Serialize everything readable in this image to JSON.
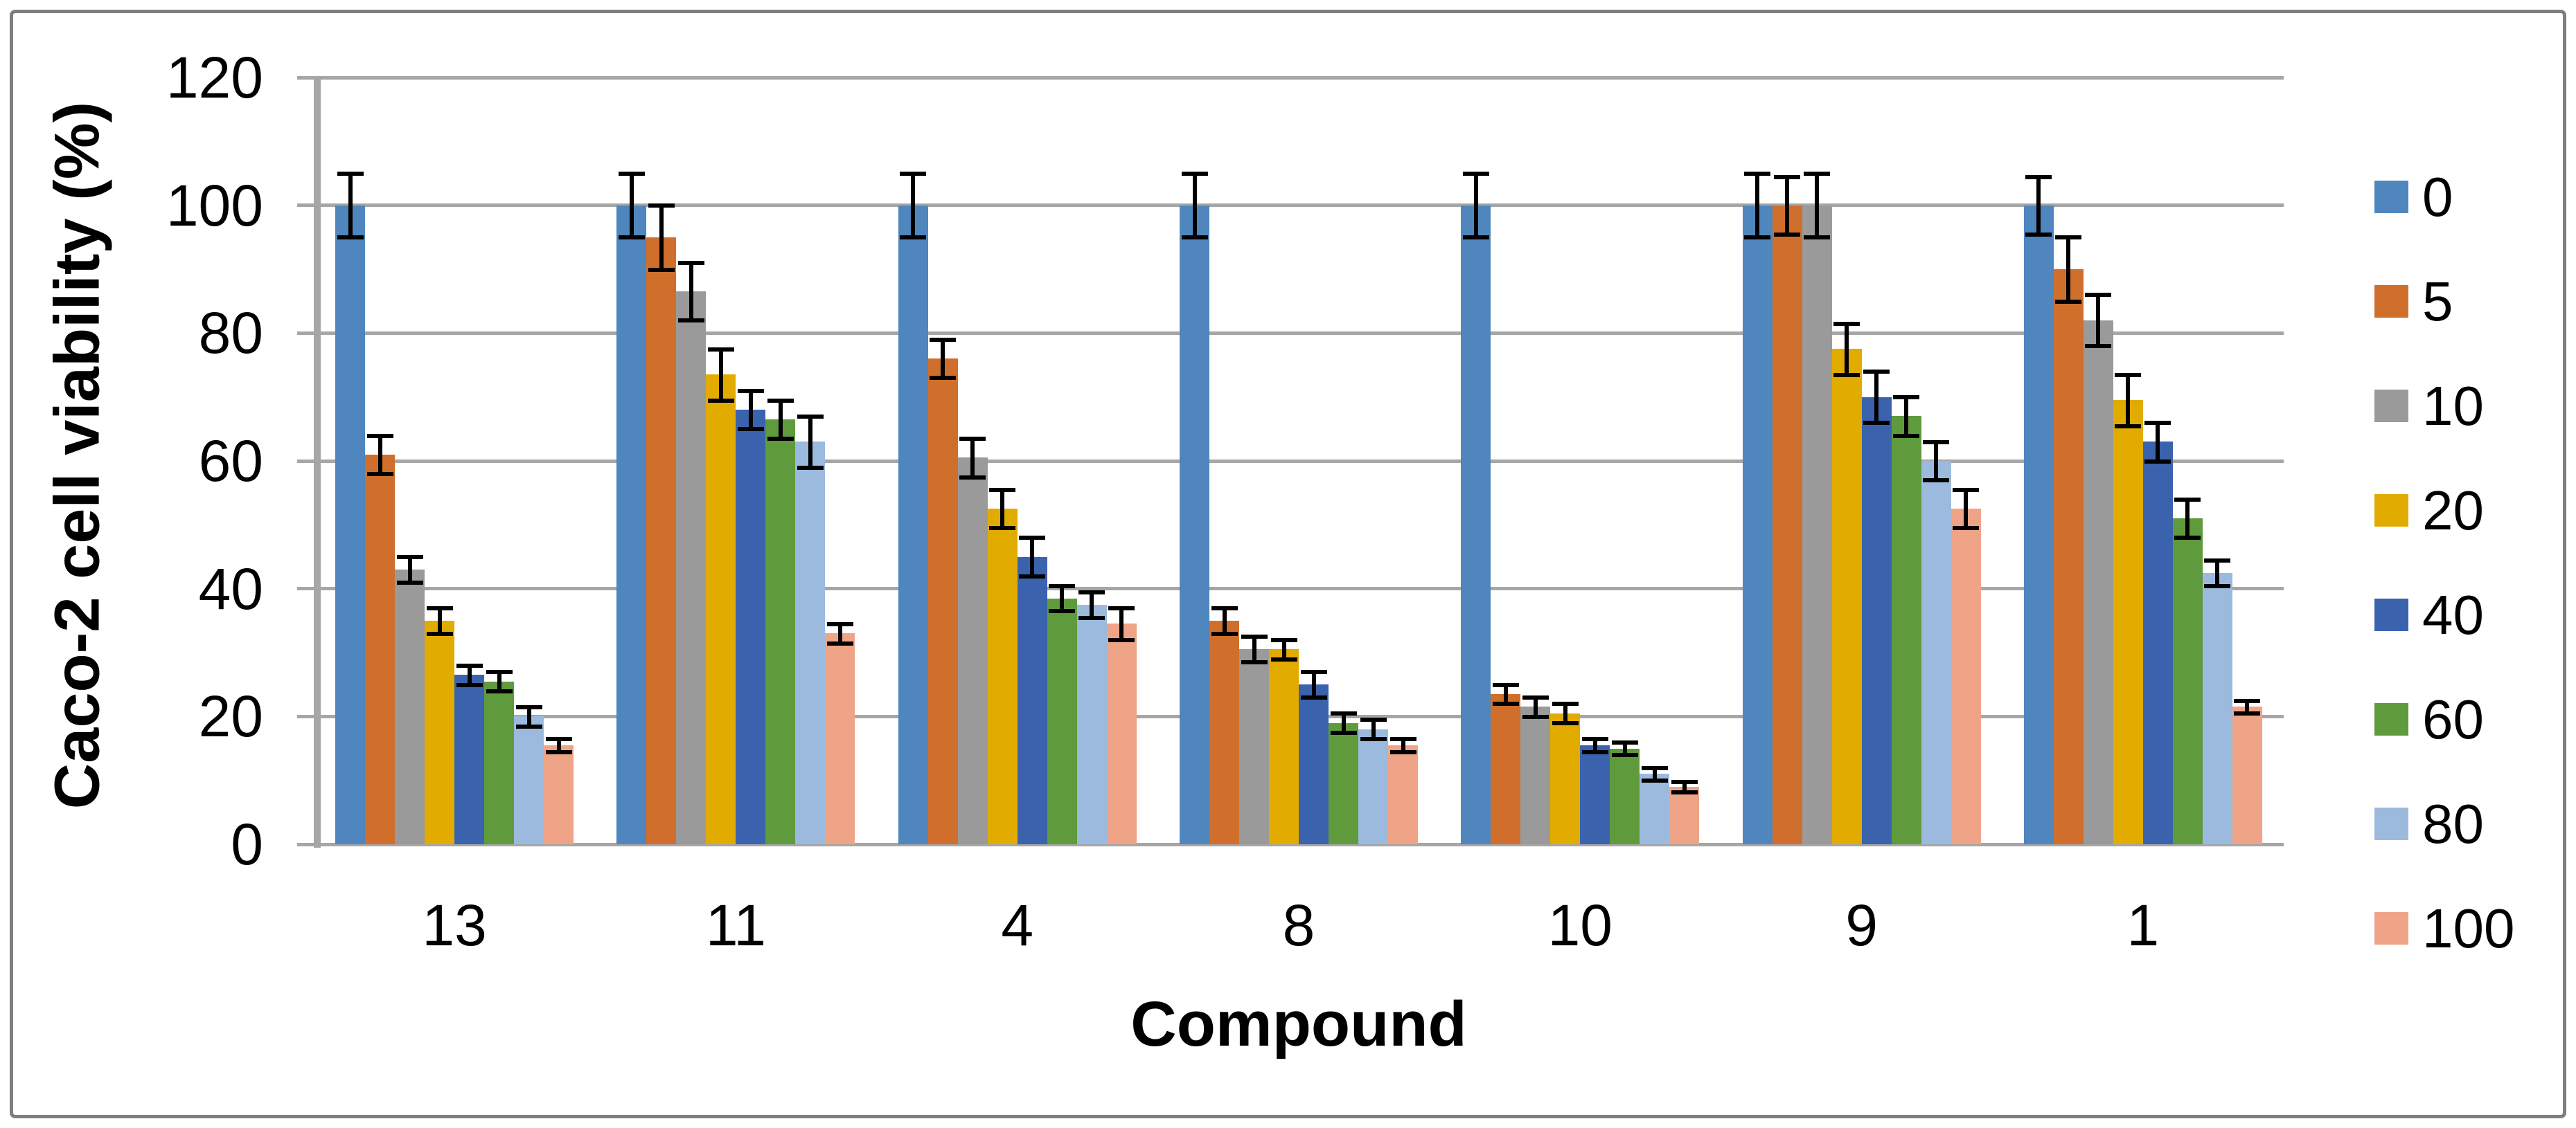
{
  "figure": {
    "background_color": "#ffffff",
    "border_color": "#7f7f7f",
    "gridline_color": "#a6a6a6",
    "text_color": "#000000",
    "error_bar_color": "#000000"
  },
  "chart_data": {
    "type": "bar",
    "title": "",
    "xlabel": "Compound",
    "ylabel": "Caco-2 cell viability (%)",
    "ylim": [
      0,
      120
    ],
    "y_ticks": [
      0,
      20,
      40,
      60,
      80,
      100,
      120
    ],
    "grid": "horizontal",
    "legend_position": "right",
    "error_bars": true,
    "categories": [
      "13",
      "11",
      "4",
      "8",
      "10",
      "9",
      "1"
    ],
    "series": [
      {
        "name": "0",
        "color": "#4e86bd",
        "values": [
          100,
          100,
          100,
          100,
          100,
          100,
          100
        ],
        "errors": [
          5,
          5,
          5,
          5,
          5,
          5,
          4.5
        ]
      },
      {
        "name": "5",
        "color": "#d06f2c",
        "values": [
          61,
          95,
          76,
          35,
          23.5,
          100,
          90
        ],
        "errors": [
          3,
          5,
          3,
          2,
          1.5,
          4.5,
          5
        ]
      },
      {
        "name": "10",
        "color": "#9a9a9a",
        "values": [
          43,
          86.5,
          60.5,
          30.5,
          21.5,
          100,
          82
        ],
        "errors": [
          2,
          4.5,
          3,
          2,
          1.5,
          5,
          4
        ]
      },
      {
        "name": "20",
        "color": "#e2ab00",
        "values": [
          35,
          73.5,
          52.5,
          30.5,
          20.5,
          77.5,
          69.5
        ],
        "errors": [
          2,
          4,
          3,
          1.5,
          1.5,
          4,
          4
        ]
      },
      {
        "name": "40",
        "color": "#3b63ad",
        "values": [
          26.5,
          68,
          45,
          25,
          15.5,
          70,
          63
        ],
        "errors": [
          1.5,
          3,
          3,
          2,
          1,
          4,
          3
        ]
      },
      {
        "name": "60",
        "color": "#5f9a3c",
        "values": [
          25.5,
          66.5,
          38.5,
          19,
          15,
          67,
          51
        ],
        "errors": [
          1.5,
          3,
          2,
          1.5,
          1,
          3,
          3
        ]
      },
      {
        "name": "80",
        "color": "#9cbade",
        "values": [
          20,
          63,
          37.5,
          18,
          11,
          60,
          42.5
        ],
        "errors": [
          1.5,
          4,
          2,
          1.5,
          1,
          3,
          2
        ]
      },
      {
        "name": "100",
        "color": "#f0a487",
        "values": [
          15.5,
          33,
          34.5,
          15.5,
          9,
          52.5,
          21.5
        ],
        "errors": [
          1,
          1.5,
          2.5,
          1,
          0.8,
          3,
          1
        ]
      }
    ]
  },
  "legend": {
    "items": [
      {
        "label": "0",
        "color": "#4e86bd"
      },
      {
        "label": "5",
        "color": "#d06f2c"
      },
      {
        "label": "10",
        "color": "#9a9a9a"
      },
      {
        "label": "20",
        "color": "#e2ab00"
      },
      {
        "label": "40",
        "color": "#3b63ad"
      },
      {
        "label": "60",
        "color": "#5f9a3c"
      },
      {
        "label": "80",
        "color": "#9cbade"
      },
      {
        "label": "100",
        "color": "#f0a487"
      }
    ]
  }
}
